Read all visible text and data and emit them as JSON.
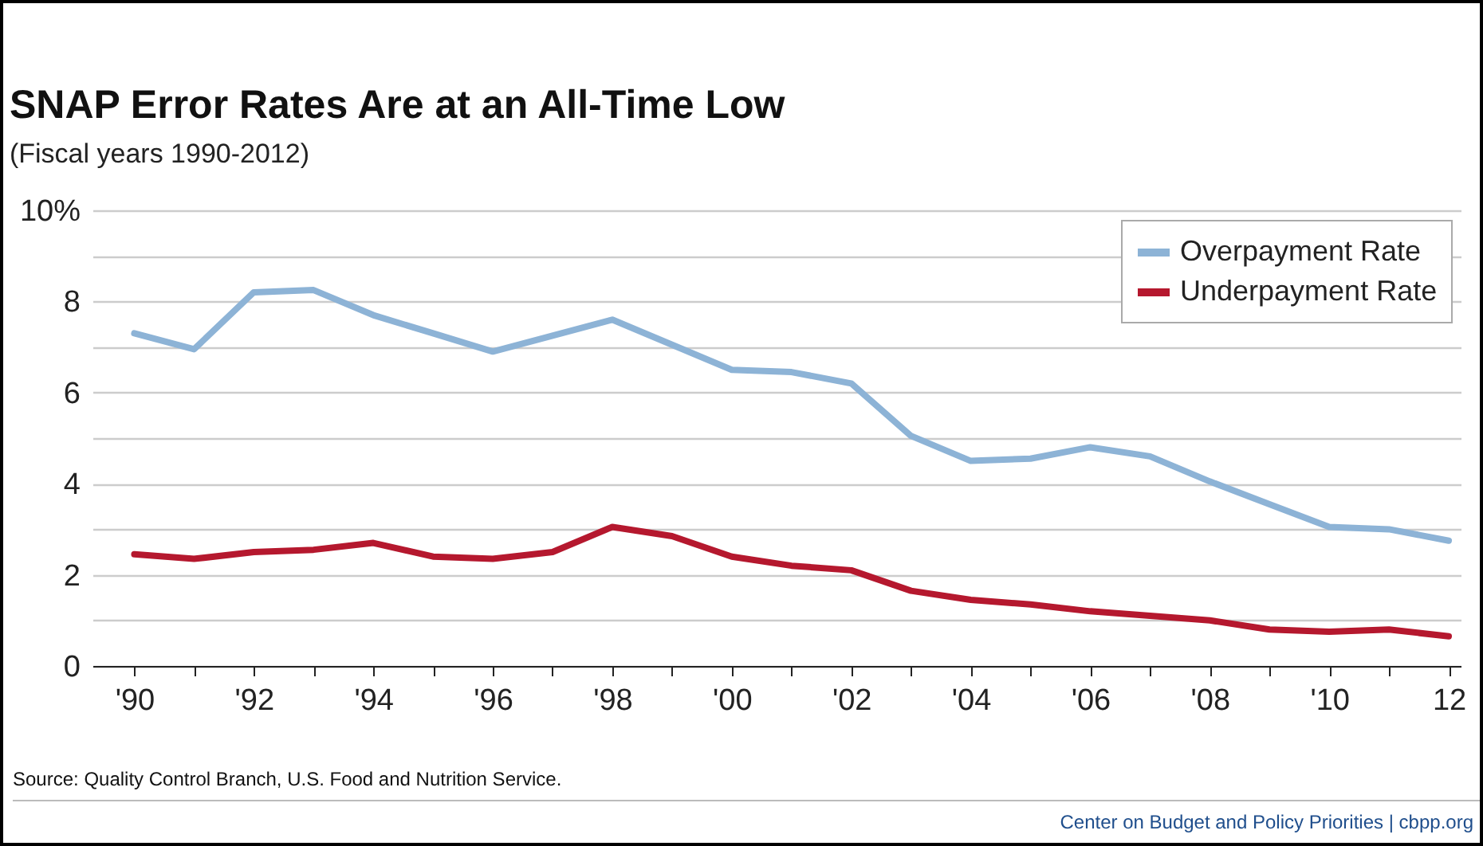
{
  "chart_data": {
    "type": "line",
    "title": "SNAP Error Rates Are at an All-Time Low",
    "subtitle": "(Fiscal years 1990-2012)",
    "x": [
      1990,
      1991,
      1992,
      1993,
      1994,
      1995,
      1996,
      1997,
      1998,
      1999,
      2000,
      2001,
      2002,
      2003,
      2004,
      2005,
      2006,
      2007,
      2008,
      2009,
      2010,
      2011,
      2012
    ],
    "series": [
      {
        "name": "Overpayment Rate",
        "color": "#8db3d6",
        "values": [
          7.3,
          6.95,
          8.2,
          8.25,
          7.7,
          7.3,
          6.9,
          7.25,
          7.6,
          7.05,
          6.5,
          6.45,
          6.2,
          5.05,
          4.5,
          4.55,
          4.8,
          4.6,
          4.05,
          3.55,
          3.05,
          3.0,
          2.75
        ]
      },
      {
        "name": "Underpayment Rate",
        "color": "#b5182e",
        "values": [
          2.45,
          2.35,
          2.5,
          2.55,
          2.7,
          2.4,
          2.35,
          2.5,
          3.05,
          2.85,
          2.4,
          2.2,
          2.1,
          1.65,
          1.45,
          1.35,
          1.2,
          1.1,
          1.0,
          0.8,
          0.75,
          0.8,
          0.65
        ]
      }
    ],
    "xlim": [
      1989.3,
      2012.2
    ],
    "xticks": [
      {
        "value": 1990,
        "label": "'90"
      },
      {
        "value": 1991,
        "label": null
      },
      {
        "value": 1992,
        "label": "'92"
      },
      {
        "value": 1993,
        "label": null
      },
      {
        "value": 1994,
        "label": "'94"
      },
      {
        "value": 1995,
        "label": null
      },
      {
        "value": 1996,
        "label": "'96"
      },
      {
        "value": 1997,
        "label": null
      },
      {
        "value": 1998,
        "label": "'98"
      },
      {
        "value": 1999,
        "label": null
      },
      {
        "value": 2000,
        "label": "'00"
      },
      {
        "value": 2001,
        "label": null
      },
      {
        "value": 2002,
        "label": "'02"
      },
      {
        "value": 2003,
        "label": null
      },
      {
        "value": 2004,
        "label": "'04"
      },
      {
        "value": 2005,
        "label": null
      },
      {
        "value": 2006,
        "label": "'06"
      },
      {
        "value": 2007,
        "label": null
      },
      {
        "value": 2008,
        "label": "'08"
      },
      {
        "value": 2009,
        "label": null
      },
      {
        "value": 2010,
        "label": "'10"
      },
      {
        "value": 2011,
        "label": null
      },
      {
        "value": 2012,
        "label": "12"
      }
    ],
    "ylim": [
      0,
      10
    ],
    "yticks": [
      0,
      {
        "value": 1,
        "label": null
      },
      2,
      {
        "value": 3,
        "label": null
      },
      4,
      {
        "value": 5,
        "label": null
      },
      6,
      {
        "value": 7,
        "label": null
      },
      8,
      {
        "value": 9,
        "label": null
      },
      {
        "value": 10,
        "label": "10%"
      }
    ],
    "grid": "y",
    "legend": "top right",
    "line_style": "solid",
    "annotations": [
      "Source: Quality Control Branch, U.S. Food and Nutrition Service.",
      "Center on Budget and Policy Priorities | cbpp.org"
    ]
  }
}
